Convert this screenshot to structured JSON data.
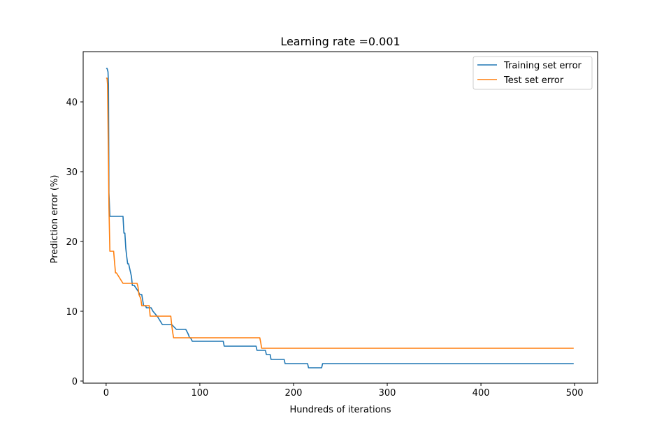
{
  "chart_data": {
    "type": "line",
    "title": "Learning rate =0.001",
    "xlabel": "Hundreds of iterations",
    "ylabel": "Prediction error (%)",
    "xlim": [
      -24.5,
      524.5
    ],
    "ylim": [
      -0.3,
      47.2
    ],
    "xticks": [
      0,
      100,
      200,
      300,
      400,
      500
    ],
    "yticks": [
      0,
      10,
      20,
      30,
      40
    ],
    "grid": false,
    "legend_position": "top-right",
    "series": [
      {
        "name": "Training set error",
        "color": "#1f77b4",
        "x": [
          0,
          1,
          2,
          2.5,
          3,
          4,
          18,
          19,
          20,
          21,
          22,
          23,
          24,
          27,
          28,
          29,
          30,
          34,
          36,
          38,
          40,
          42,
          43,
          48,
          50,
          55,
          60,
          70,
          75,
          85,
          87,
          88,
          89,
          90,
          92,
          95,
          100,
          125,
          126,
          160,
          161,
          165,
          166,
          170,
          171,
          175,
          176,
          190,
          191,
          200,
          205,
          215,
          216,
          230,
          231,
          240,
          300,
          400,
          499
        ],
        "y": [
          44.8,
          44.8,
          44.3,
          42.5,
          27.0,
          23.6,
          23.6,
          21.2,
          21.2,
          19.0,
          17.8,
          16.8,
          16.8,
          15.0,
          13.7,
          13.7,
          13.7,
          12.9,
          12.4,
          12.4,
          10.8,
          10.8,
          10.5,
          10.5,
          10.0,
          9.2,
          8.1,
          8.1,
          7.4,
          7.4,
          6.9,
          6.6,
          6.2,
          6.2,
          5.7,
          5.7,
          5.7,
          5.7,
          5.0,
          5.0,
          4.4,
          4.4,
          4.4,
          4.4,
          3.8,
          3.8,
          3.1,
          3.1,
          2.5,
          2.5,
          2.5,
          2.5,
          1.9,
          1.9,
          2.5,
          2.5,
          2.5,
          2.5,
          2.5
        ]
      },
      {
        "name": "Test set error",
        "color": "#ff7f0e",
        "x": [
          0,
          1,
          1.5,
          2,
          3,
          4,
          5,
          8,
          9,
          10,
          11,
          18,
          19,
          33,
          34,
          35,
          37,
          38,
          39,
          46,
          47,
          48,
          69,
          70,
          71,
          72,
          164,
          165,
          166,
          499
        ],
        "y": [
          43.4,
          43.4,
          42.5,
          37.0,
          25.0,
          18.6,
          18.6,
          18.6,
          17.0,
          15.5,
          15.5,
          14.0,
          14.0,
          14.0,
          13.5,
          12.4,
          11.8,
          10.8,
          10.8,
          10.8,
          9.3,
          9.3,
          9.3,
          8.0,
          7.0,
          6.2,
          6.2,
          5.5,
          4.7,
          4.7
        ]
      }
    ]
  }
}
